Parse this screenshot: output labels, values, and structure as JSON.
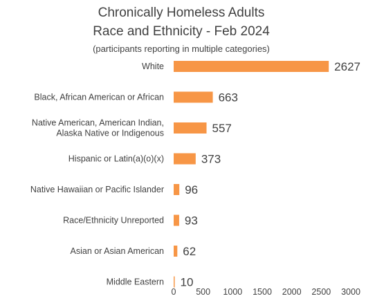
{
  "chart_data": {
    "type": "bar",
    "orientation": "horizontal",
    "title_lines": [
      "Chronically Homeless Adults",
      "Race and Ethnicity - Feb 2024"
    ],
    "subtitle": "(participants reporting in multiple categories)",
    "categories": [
      [
        "White"
      ],
      [
        "Black, African American or African"
      ],
      [
        "Native American, American Indian,",
        "Alaska Native or Indigenous"
      ],
      [
        "Hispanic or Latin(a)(o)(x)"
      ],
      [
        "Native Hawaiian or Pacific Islander"
      ],
      [
        "Race/Ethnicity Unreported"
      ],
      [
        "Asian or Asian American"
      ],
      [
        "Middle Eastern"
      ]
    ],
    "values": [
      2627,
      663,
      557,
      373,
      96,
      93,
      62,
      10
    ],
    "xlim": [
      0,
      3000
    ],
    "xticks": [
      0,
      500,
      1000,
      1500,
      2000,
      2500,
      3000
    ],
    "bar_color": "#f79646",
    "grid": false,
    "legend": false
  }
}
